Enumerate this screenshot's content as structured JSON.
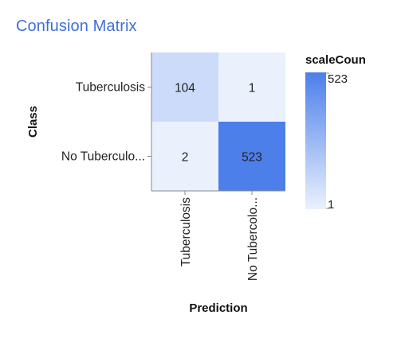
{
  "title": "Confusion Matrix",
  "chart_data": {
    "type": "heatmap",
    "title": "Confusion Matrix",
    "xlabel": "Prediction",
    "ylabel": "Class",
    "x_categories": [
      "Tuberculosis",
      "No Tubercolo..."
    ],
    "y_categories": [
      "Tuberculosis",
      "No Tuberculo..."
    ],
    "values": [
      [
        104,
        1
      ],
      [
        2,
        523
      ]
    ],
    "legend": {
      "title": "scaleCoun",
      "min": 1,
      "max": 523,
      "min_label": "1",
      "max_label": "523"
    },
    "colors": {
      "low": "#eaf1fd",
      "high": "#4d7fea"
    },
    "grid": false
  }
}
